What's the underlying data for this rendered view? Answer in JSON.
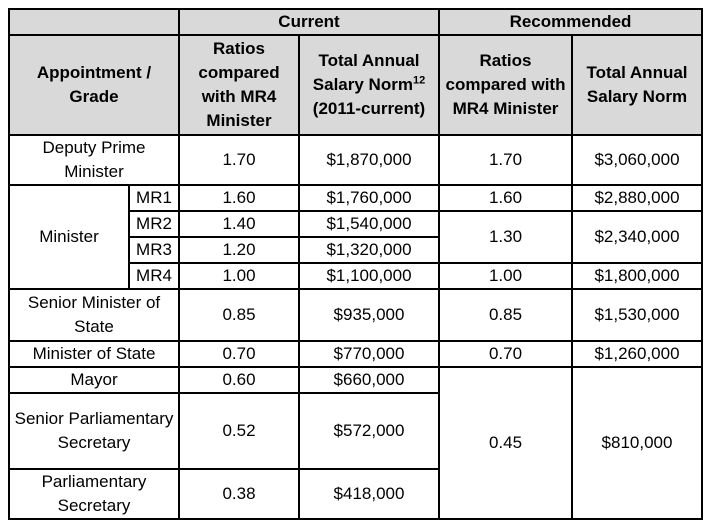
{
  "groups": {
    "current": "Current",
    "recommended": "Recommended"
  },
  "headers": {
    "appointment": "Appointment / Grade",
    "ratio_current": "Ratios compared with MR4 Minister",
    "salary_current_main": "Total Annual Salary Norm",
    "salary_current_sup": "12",
    "salary_current_period": "(2011-current)",
    "ratio_recommended": "Ratios compared with MR4 Minister",
    "salary_recommended": "Total Annual Salary Norm"
  },
  "rows": {
    "dpm": {
      "label": "Deputy Prime Minister",
      "ratio_c": "1.70",
      "salary_c": "$1,870,000",
      "ratio_r": "1.70",
      "salary_r": "$3,060,000"
    },
    "minister": {
      "label": "Minister"
    },
    "mr1": {
      "grade": "MR1",
      "ratio_c": "1.60",
      "salary_c": "$1,760,000",
      "ratio_r": "1.60",
      "salary_r": "$2,880,000"
    },
    "mr2": {
      "grade": "MR2",
      "ratio_c": "1.40",
      "salary_c": "$1,540,000"
    },
    "mr23_rec": {
      "ratio_r": "1.30",
      "salary_r": "$2,340,000"
    },
    "mr3": {
      "grade": "MR3",
      "ratio_c": "1.20",
      "salary_c": "$1,320,000"
    },
    "mr4": {
      "grade": "MR4",
      "ratio_c": "1.00",
      "salary_c": "$1,100,000",
      "ratio_r": "1.00",
      "salary_r": "$1,800,000"
    },
    "sms": {
      "label": "Senior Minister of State",
      "ratio_c": "0.85",
      "salary_c": "$935,000",
      "ratio_r": "0.85",
      "salary_r": "$1,530,000"
    },
    "mos": {
      "label": "Minister of State",
      "ratio_c": "0.70",
      "salary_c": "$770,000",
      "ratio_r": "0.70",
      "salary_r": "$1,260,000"
    },
    "mayor": {
      "label": "Mayor",
      "ratio_c": "0.60",
      "salary_c": "$660,000"
    },
    "lower_rec": {
      "ratio_r": "0.45",
      "salary_r": "$810,000"
    },
    "sps": {
      "label": "Senior Parliamentary Secretary",
      "ratio_c": "0.52",
      "salary_c": "$572,000"
    },
    "ps": {
      "label": "Parliamentary Secretary",
      "ratio_c": "0.38",
      "salary_c": "$418,000"
    }
  }
}
